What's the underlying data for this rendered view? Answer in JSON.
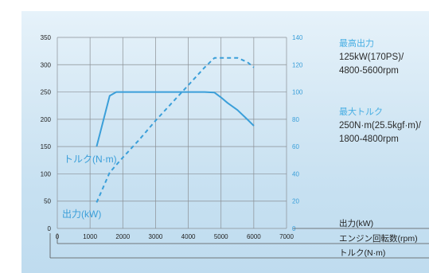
{
  "chart_data": {
    "type": "line",
    "x": [
      1200,
      1600,
      1800,
      2000,
      2500,
      3000,
      3500,
      4000,
      4500,
      4800,
      5000,
      5200,
      5500,
      5800,
      6000
    ],
    "series": [
      {
        "name": "トルク(N·m)",
        "axis": "left",
        "line_style": "solid",
        "points": [
          [
            1200,
            150
          ],
          [
            1600,
            243
          ],
          [
            1800,
            250
          ],
          [
            2000,
            250
          ],
          [
            2500,
            250
          ],
          [
            3000,
            250
          ],
          [
            3500,
            250
          ],
          [
            4000,
            250
          ],
          [
            4500,
            250
          ],
          [
            4800,
            249
          ],
          [
            5000,
            240
          ],
          [
            5200,
            230
          ],
          [
            5500,
            217
          ],
          [
            5800,
            200
          ],
          [
            6000,
            188
          ]
        ]
      },
      {
        "name": "出力(kW)",
        "axis": "right",
        "line_style": "dashed",
        "points": [
          [
            1200,
            19
          ],
          [
            1600,
            41
          ],
          [
            2000,
            52
          ],
          [
            2500,
            65
          ],
          [
            3000,
            79
          ],
          [
            3500,
            92
          ],
          [
            4000,
            105
          ],
          [
            4500,
            118
          ],
          [
            4800,
            125
          ],
          [
            5000,
            125
          ],
          [
            5500,
            125
          ],
          [
            5800,
            122
          ],
          [
            6000,
            118
          ]
        ]
      }
    ],
    "x_ticks": [
      "0",
      "1000",
      "2000",
      "3000",
      "4000",
      "5000",
      "6000",
      "7000"
    ],
    "y_left_ticks": [
      "0",
      "50",
      "100",
      "150",
      "200",
      "250",
      "300",
      "350"
    ],
    "y_right_ticks": [
      "0",
      "20",
      "40",
      "60",
      "80",
      "100",
      "120",
      "140"
    ],
    "xlim": [
      0,
      7000
    ],
    "ylim_left": [
      0,
      350
    ],
    "ylim_right": [
      0,
      140
    ],
    "grid": true,
    "colors": {
      "curve": "#3b9fd9",
      "grid": "#8a8f94",
      "right_axis": "#3b9fd9"
    },
    "curve_labels": {
      "torque": "トルク(N·m)",
      "power": "出力(kW)"
    },
    "legend_labels": [
      "出力(kW)",
      "エンジン回転数(rpm)",
      "トルク(N·m)"
    ]
  },
  "specs": {
    "max_power_title": "最高出力",
    "max_power_line1": "125kW(170PS)/",
    "max_power_line2": "4800-5600rpm",
    "max_torque_title": "最大トルク",
    "max_torque_line1": "250N·m(25.5kgf·m)/",
    "max_torque_line2": "1800-4800rpm"
  }
}
